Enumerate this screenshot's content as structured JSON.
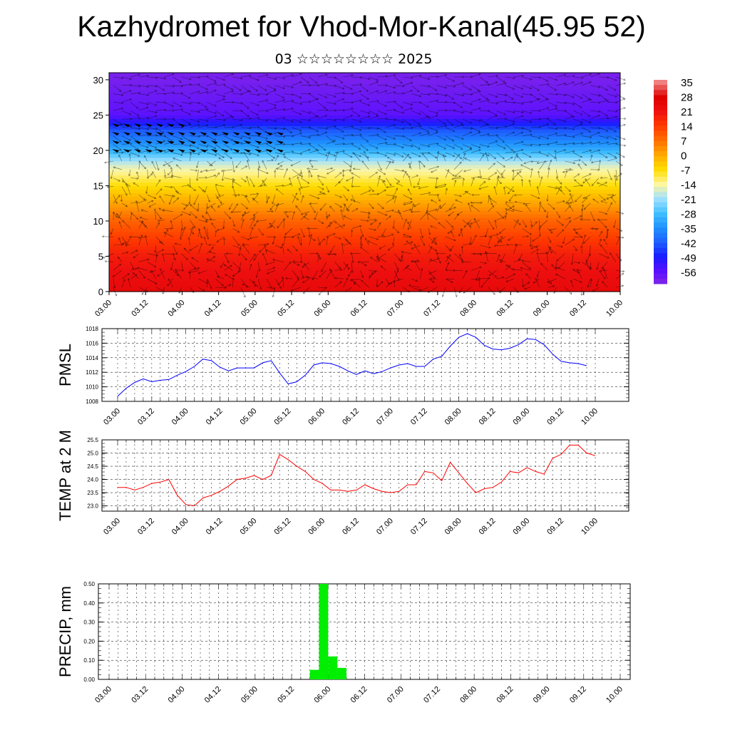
{
  "title": "Kazhydromet for Vhod-Mor-Kanal(45.95 52)",
  "subtitle": "03 ☆☆☆☆☆☆☆☆ 2025",
  "colors": {
    "pmsl_line": "#0000ff",
    "temp_line": "#ff0000",
    "precip_bar": "#00ee00",
    "wind_arrows": "#000000"
  },
  "chart_data": [
    {
      "id": "cross-section",
      "type": "heatmap",
      "title": "",
      "xlabel": "",
      "ylabel": "",
      "x_ticks": [
        "03.00",
        "03.12",
        "04.00",
        "04.12",
        "05.00",
        "05.12",
        "06.00",
        "06.12",
        "07.00",
        "07.12",
        "08.00",
        "08.12",
        "09.00",
        "09.12",
        "10.00"
      ],
      "y_ticks": [
        0,
        5,
        10,
        15,
        20,
        25,
        30
      ],
      "ylim": [
        0,
        31
      ],
      "overlay": "wind-arrows",
      "colorbar": {
        "labels": [
          35,
          28,
          21,
          14,
          7,
          0,
          -7,
          -14,
          -21,
          -28,
          -35,
          -42,
          -49,
          -56
        ],
        "colors": [
          "#8a2be2",
          "#5a10ff",
          "#1a1aff",
          "#1e5fff",
          "#1e90ff",
          "#40c0ff",
          "#a0e0ff",
          "#fff6a0",
          "#ffdd00",
          "#ffaa00",
          "#ff7000",
          "#ff3a00",
          "#ee1010",
          "#dd0000",
          "#f08080"
        ]
      },
      "temperature_by_level": [
        {
          "level": 0,
          "value": 30
        },
        {
          "level": 5,
          "value": 25
        },
        {
          "level": 10,
          "value": 14
        },
        {
          "level": 15,
          "value": -3
        },
        {
          "level": 18,
          "value": -14
        },
        {
          "level": 20,
          "value": -28
        },
        {
          "level": 23,
          "value": -42
        },
        {
          "level": 25,
          "value": -56
        },
        {
          "level": 30,
          "value": -60
        }
      ]
    },
    {
      "id": "pmsl",
      "type": "line",
      "ylabel": "PMSL",
      "ylim": [
        1008,
        1018
      ],
      "y_ticks": [
        1008,
        1010,
        1012,
        1014,
        1016,
        1018
      ],
      "x_ticks": [
        "03.00",
        "03.12",
        "04.00",
        "04.12",
        "05.00",
        "05.12",
        "06.00",
        "06.12",
        "07.00",
        "07.12",
        "08.00",
        "08.12",
        "09.00",
        "09.12",
        "10.00"
      ],
      "step_hours": 3,
      "values": [
        1008.7,
        1009.8,
        1010.6,
        1011.1,
        1010.7,
        1010.9,
        1011.0,
        1011.6,
        1012.1,
        1012.8,
        1013.8,
        1013.6,
        1012.7,
        1012.2,
        1012.6,
        1012.6,
        1012.6,
        1013.3,
        1013.6,
        1011.9,
        1010.4,
        1010.7,
        1011.6,
        1013.0,
        1013.3,
        1013.2,
        1012.8,
        1012.2,
        1011.7,
        1012.2,
        1011.8,
        1012.1,
        1012.6,
        1013.0,
        1013.2,
        1012.8,
        1012.8,
        1013.8,
        1014.2,
        1015.6,
        1016.8,
        1017.3,
        1016.8,
        1015.7,
        1015.2,
        1015.1,
        1015.3,
        1015.8,
        1016.6,
        1016.5,
        1015.8,
        1014.5,
        1013.5,
        1013.3,
        1013.2,
        1012.9
      ]
    },
    {
      "id": "temp2m",
      "type": "line",
      "ylabel": "TEMP at 2 M",
      "ylim": [
        22.8,
        25.5
      ],
      "y_ticks": [
        23.0,
        23.5,
        24.0,
        24.5,
        25.0,
        25.5
      ],
      "x_ticks": [
        "03.00",
        "03.12",
        "04.00",
        "04.12",
        "05.00",
        "05.12",
        "06.00",
        "06.12",
        "07.00",
        "07.12",
        "08.00",
        "08.12",
        "09.00",
        "09.12",
        "10.00"
      ],
      "step_hours": 3,
      "values": [
        23.7,
        23.7,
        23.6,
        23.7,
        23.85,
        23.9,
        24.0,
        23.4,
        23.05,
        23.0,
        23.3,
        23.4,
        23.55,
        23.75,
        24.0,
        24.05,
        24.15,
        24.0,
        24.15,
        24.95,
        24.75,
        24.5,
        24.3,
        24.0,
        23.85,
        23.6,
        23.6,
        23.55,
        23.6,
        23.8,
        23.65,
        23.55,
        23.5,
        23.55,
        23.8,
        23.8,
        24.3,
        24.25,
        23.95,
        24.65,
        24.25,
        23.85,
        23.5,
        23.65,
        23.7,
        23.9,
        24.3,
        24.25,
        24.45,
        24.3,
        24.2,
        24.8,
        24.95,
        25.3,
        25.3,
        25.0,
        24.9
      ]
    },
    {
      "id": "precip",
      "type": "bar",
      "ylabel": "PRECIP, mm",
      "ylim": [
        0,
        0.5
      ],
      "y_ticks": [
        "0.00",
        "0.10",
        "0.20",
        "0.30",
        "0.40",
        "0.50"
      ],
      "x_ticks": [
        "03.00",
        "03.12",
        "04.00",
        "04.12",
        "05.00",
        "05.12",
        "06.00",
        "06.12",
        "07.00",
        "07.12",
        "08.00",
        "08.12",
        "09.00",
        "09.12",
        "10.00"
      ],
      "step_hours": 3,
      "bars": [
        {
          "hour": 69,
          "value": 0.05
        },
        {
          "hour": 72,
          "value": 0.5
        },
        {
          "hour": 75,
          "value": 0.12
        },
        {
          "hour": 78,
          "value": 0.06
        }
      ]
    }
  ]
}
